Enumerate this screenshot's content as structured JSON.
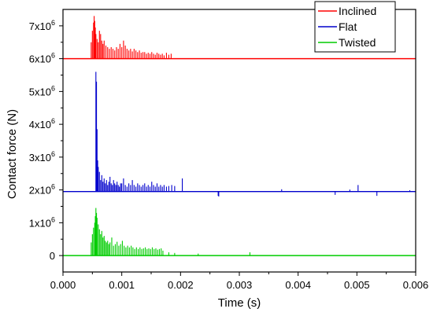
{
  "chart_data": {
    "type": "line",
    "xlabel": "Time (s)",
    "ylabel": "Contact force (N)",
    "xlim": [
      0,
      0.006
    ],
    "ylim": [
      -500000,
      7500000
    ],
    "x_ticks": [
      {
        "value": 0.0,
        "label": "0.000"
      },
      {
        "value": 0.001,
        "label": "0.001"
      },
      {
        "value": 0.002,
        "label": "0.002"
      },
      {
        "value": 0.003,
        "label": "0.003"
      },
      {
        "value": 0.004,
        "label": "0.004"
      },
      {
        "value": 0.005,
        "label": "0.005"
      },
      {
        "value": 0.006,
        "label": "0.006"
      }
    ],
    "y_ticks": [
      {
        "value": 0,
        "mantissa": "0",
        "exponent": ""
      },
      {
        "value": 1000000,
        "mantissa": "1x10",
        "exponent": "6"
      },
      {
        "value": 2000000,
        "mantissa": "2x10",
        "exponent": "6"
      },
      {
        "value": 3000000,
        "mantissa": "3x10",
        "exponent": "6"
      },
      {
        "value": 4000000,
        "mantissa": "4x10",
        "exponent": "6"
      },
      {
        "value": 5000000,
        "mantissa": "5x10",
        "exponent": "6"
      },
      {
        "value": 6000000,
        "mantissa": "6x10",
        "exponent": "6"
      },
      {
        "value": 7000000,
        "mantissa": "7x10",
        "exponent": "6"
      }
    ],
    "grid": false,
    "legend_position": "top-right",
    "series": [
      {
        "name": "Inclined",
        "color": "#ff0000",
        "baseline": 6000000,
        "spikes": [
          [
            0.00048,
            6500000
          ],
          [
            0.0005,
            6850000
          ],
          [
            0.00052,
            7100000
          ],
          [
            0.00053,
            7300000
          ],
          [
            0.00054,
            7150000
          ],
          [
            0.00055,
            6950000
          ],
          [
            0.00056,
            6750000
          ],
          [
            0.00058,
            6600000
          ],
          [
            0.0006,
            6500000
          ],
          [
            0.00062,
            6850000
          ],
          [
            0.00064,
            6750000
          ],
          [
            0.00066,
            6550000
          ],
          [
            0.00068,
            6450000
          ],
          [
            0.0007,
            6550000
          ],
          [
            0.00073,
            6400000
          ],
          [
            0.00076,
            6350000
          ],
          [
            0.00079,
            6300000
          ],
          [
            0.00082,
            6350000
          ],
          [
            0.00085,
            6300000
          ],
          [
            0.00088,
            6250000
          ],
          [
            0.00091,
            6350000
          ],
          [
            0.00094,
            6300000
          ],
          [
            0.00097,
            6450000
          ],
          [
            0.001,
            6350000
          ],
          [
            0.00103,
            6550000
          ],
          [
            0.00106,
            6400000
          ],
          [
            0.00109,
            6300000
          ],
          [
            0.00112,
            6250000
          ],
          [
            0.00115,
            6300000
          ],
          [
            0.00118,
            6220000
          ],
          [
            0.00121,
            6300000
          ],
          [
            0.00124,
            6250000
          ],
          [
            0.00127,
            6200000
          ],
          [
            0.0013,
            6250000
          ],
          [
            0.00133,
            6180000
          ],
          [
            0.00136,
            6200000
          ],
          [
            0.00139,
            6200000
          ],
          [
            0.00142,
            6150000
          ],
          [
            0.00145,
            6180000
          ],
          [
            0.00148,
            6150000
          ],
          [
            0.00151,
            6200000
          ],
          [
            0.00154,
            6150000
          ],
          [
            0.00157,
            6120000
          ],
          [
            0.0016,
            6180000
          ],
          [
            0.00163,
            6150000
          ],
          [
            0.00166,
            6120000
          ],
          [
            0.00169,
            6150000
          ],
          [
            0.00172,
            6100000
          ],
          [
            0.00176,
            6180000
          ],
          [
            0.0018,
            6120000
          ],
          [
            0.00184,
            6150000
          ]
        ]
      },
      {
        "name": "Flat",
        "color": "#0000cc",
        "baseline": 1950000,
        "spikes": [
          [
            0.00056,
            5600000
          ],
          [
            0.00057,
            5300000
          ],
          [
            0.00058,
            3850000
          ],
          [
            0.00059,
            2900000
          ],
          [
            0.0006,
            2700000
          ],
          [
            0.00062,
            2550000
          ],
          [
            0.00064,
            2300000
          ],
          [
            0.00066,
            2450000
          ],
          [
            0.00068,
            2250000
          ],
          [
            0.0007,
            2350000
          ],
          [
            0.00072,
            2200000
          ],
          [
            0.00074,
            2300000
          ],
          [
            0.00076,
            2150000
          ],
          [
            0.00078,
            2250000
          ],
          [
            0.0008,
            2400000
          ],
          [
            0.00082,
            2200000
          ],
          [
            0.00084,
            2150000
          ],
          [
            0.00086,
            2300000
          ],
          [
            0.00088,
            2200000
          ],
          [
            0.0009,
            2150000
          ],
          [
            0.00092,
            2250000
          ],
          [
            0.00094,
            2150000
          ],
          [
            0.00096,
            2100000
          ],
          [
            0.00098,
            2200000
          ],
          [
            0.001,
            2200000
          ],
          [
            0.00103,
            2350000
          ],
          [
            0.00106,
            2150000
          ],
          [
            0.00109,
            2100000
          ],
          [
            0.00112,
            2200000
          ],
          [
            0.00115,
            2150000
          ],
          [
            0.00118,
            2300000
          ],
          [
            0.00121,
            2150000
          ],
          [
            0.00124,
            2100000
          ],
          [
            0.00127,
            2200000
          ],
          [
            0.0013,
            2150000
          ],
          [
            0.00133,
            2100000
          ],
          [
            0.00136,
            2150000
          ],
          [
            0.00139,
            2200000
          ],
          [
            0.00142,
            2100000
          ],
          [
            0.00145,
            2150000
          ],
          [
            0.00148,
            2100000
          ],
          [
            0.00151,
            2250000
          ],
          [
            0.00154,
            2150000
          ],
          [
            0.00157,
            2100000
          ],
          [
            0.0016,
            2200000
          ],
          [
            0.00163,
            2100000
          ],
          [
            0.00166,
            2150000
          ],
          [
            0.00169,
            2100000
          ],
          [
            0.00172,
            2150000
          ],
          [
            0.00176,
            2100000
          ],
          [
            0.0018,
            2120000
          ],
          [
            0.00185,
            2150000
          ],
          [
            0.0019,
            2120000
          ],
          [
            0.00203,
            2350000
          ],
          [
            0.00264,
            1820000
          ],
          [
            0.00265,
            1800000
          ],
          [
            0.00372,
            2020000
          ],
          [
            0.00463,
            1850000
          ],
          [
            0.00488,
            2010000
          ],
          [
            0.00502,
            2150000
          ],
          [
            0.00534,
            1820000
          ],
          [
            0.0059,
            1990000
          ]
        ]
      },
      {
        "name": "Twisted",
        "color": "#00cc00",
        "baseline": 0,
        "spikes": [
          [
            0.00048,
            400000
          ],
          [
            0.0005,
            650000
          ],
          [
            0.00052,
            850000
          ],
          [
            0.00054,
            1000000
          ],
          [
            0.00055,
            1200000
          ],
          [
            0.00056,
            1450000
          ],
          [
            0.00057,
            1300000
          ],
          [
            0.00058,
            1150000
          ],
          [
            0.0006,
            950000
          ],
          [
            0.00062,
            800000
          ],
          [
            0.00064,
            650000
          ],
          [
            0.00066,
            750000
          ],
          [
            0.00068,
            550000
          ],
          [
            0.0007,
            600000
          ],
          [
            0.00072,
            450000
          ],
          [
            0.00074,
            400000
          ],
          [
            0.00076,
            450000
          ],
          [
            0.00078,
            350000
          ],
          [
            0.0008,
            400000
          ],
          [
            0.00083,
            550000
          ],
          [
            0.00086,
            300000
          ],
          [
            0.00089,
            350000
          ],
          [
            0.00092,
            420000
          ],
          [
            0.00095,
            300000
          ],
          [
            0.00098,
            350000
          ],
          [
            0.00101,
            450000
          ],
          [
            0.00104,
            300000
          ],
          [
            0.00107,
            250000
          ],
          [
            0.0011,
            300000
          ],
          [
            0.00113,
            250000
          ],
          [
            0.00116,
            300000
          ],
          [
            0.00119,
            250000
          ],
          [
            0.00122,
            200000
          ],
          [
            0.00125,
            250000
          ],
          [
            0.00128,
            200000
          ],
          [
            0.00131,
            250000
          ],
          [
            0.00134,
            200000
          ],
          [
            0.00137,
            220000
          ],
          [
            0.0014,
            250000
          ],
          [
            0.00143,
            200000
          ],
          [
            0.00146,
            220000
          ],
          [
            0.00149,
            200000
          ],
          [
            0.00152,
            250000
          ],
          [
            0.00155,
            200000
          ],
          [
            0.00158,
            220000
          ],
          [
            0.00161,
            180000
          ],
          [
            0.00164,
            200000
          ],
          [
            0.00167,
            220000
          ],
          [
            0.0017,
            150000
          ],
          [
            0.0018,
            100000
          ],
          [
            0.0019,
            80000
          ],
          [
            0.0023,
            60000
          ],
          [
            0.00318,
            100000
          ]
        ]
      }
    ]
  }
}
